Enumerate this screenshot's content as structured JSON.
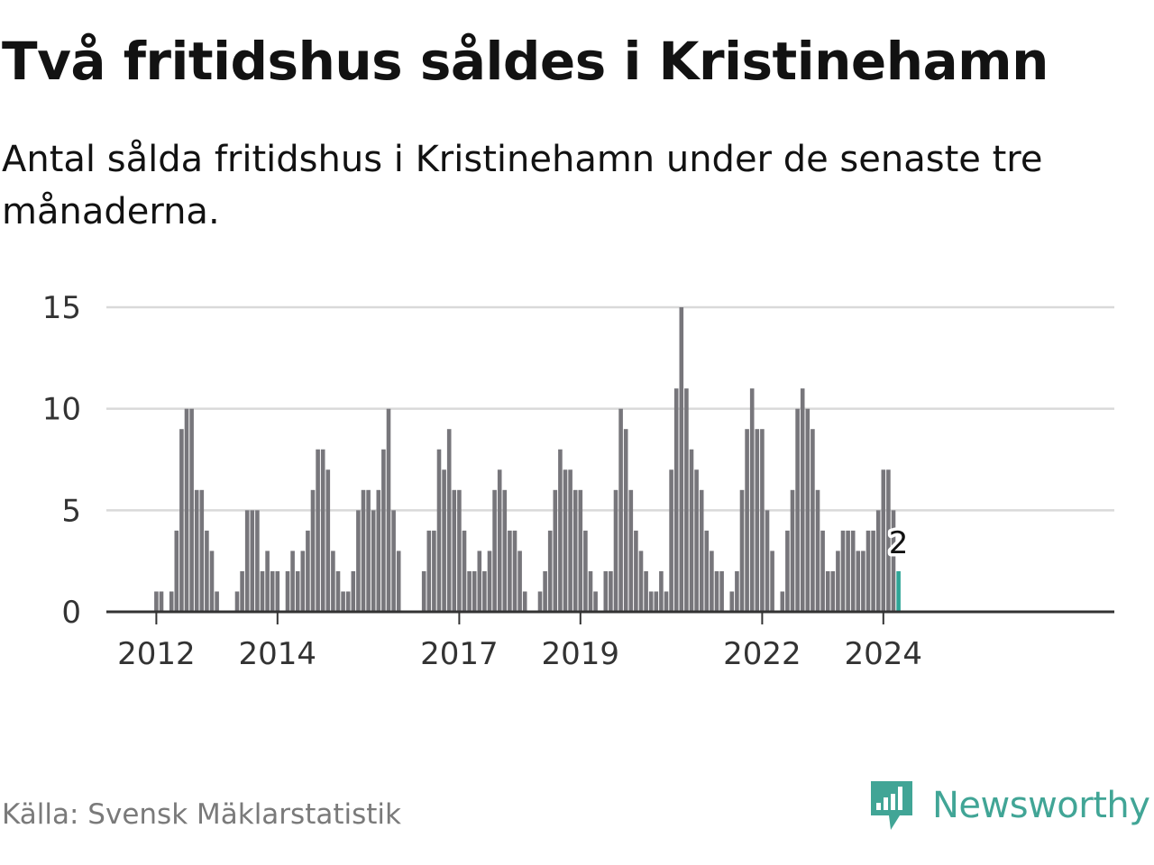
{
  "title": "Två fritidshus såldes i Kristinehamn",
  "subtitle": "Antal sålda fritidshus i Kristinehamn under de senaste tre månaderna.",
  "source": "Källa: Svensk Mäklarstatistik",
  "brand": "Newsworthy",
  "colors": {
    "bar": "#77767b",
    "highlight": "#2fa597",
    "grid": "#d9d9d9",
    "axis": "#333333",
    "brand": "#41a596"
  },
  "chart_data": {
    "type": "bar",
    "title": "Två fritidshus såldes i Kristinehamn",
    "xlabel": "",
    "ylabel": "",
    "ylim": [
      0,
      15
    ],
    "yticks": [
      0,
      5,
      10,
      15
    ],
    "start": {
      "year": 2011,
      "month": 10
    },
    "x_tick_labels": [
      {
        "label": "2012",
        "index": 3
      },
      {
        "label": "2014",
        "index": 27
      },
      {
        "label": "2017",
        "index": 63
      },
      {
        "label": "2019",
        "index": 87
      },
      {
        "label": "2022",
        "index": 123
      },
      {
        "label": "2024",
        "index": 147
      }
    ],
    "values": [
      0,
      0,
      0,
      1,
      1,
      0,
      1,
      4,
      9,
      10,
      10,
      6,
      6,
      4,
      3,
      1,
      0,
      0,
      0,
      1,
      2,
      5,
      5,
      5,
      2,
      3,
      2,
      2,
      0,
      2,
      3,
      2,
      3,
      4,
      6,
      8,
      8,
      7,
      3,
      2,
      1,
      1,
      2,
      5,
      6,
      6,
      5,
      6,
      8,
      10,
      5,
      3,
      0,
      0,
      0,
      0,
      2,
      4,
      4,
      8,
      7,
      9,
      6,
      6,
      4,
      2,
      2,
      3,
      2,
      3,
      6,
      7,
      6,
      4,
      4,
      3,
      1,
      0,
      0,
      1,
      2,
      4,
      6,
      8,
      7,
      7,
      6,
      6,
      4,
      2,
      1,
      0,
      2,
      2,
      6,
      10,
      9,
      6,
      4,
      3,
      2,
      1,
      1,
      2,
      1,
      7,
      11,
      15,
      11,
      8,
      7,
      6,
      4,
      3,
      2,
      2,
      0,
      1,
      2,
      6,
      9,
      11,
      9,
      9,
      5,
      3,
      0,
      1,
      4,
      6,
      10,
      11,
      10,
      9,
      6,
      4,
      2,
      2,
      3,
      4,
      4,
      4,
      3,
      3,
      4,
      4,
      5,
      7,
      7,
      5,
      2
    ],
    "highlight_last": true,
    "last_value_label": "2"
  }
}
